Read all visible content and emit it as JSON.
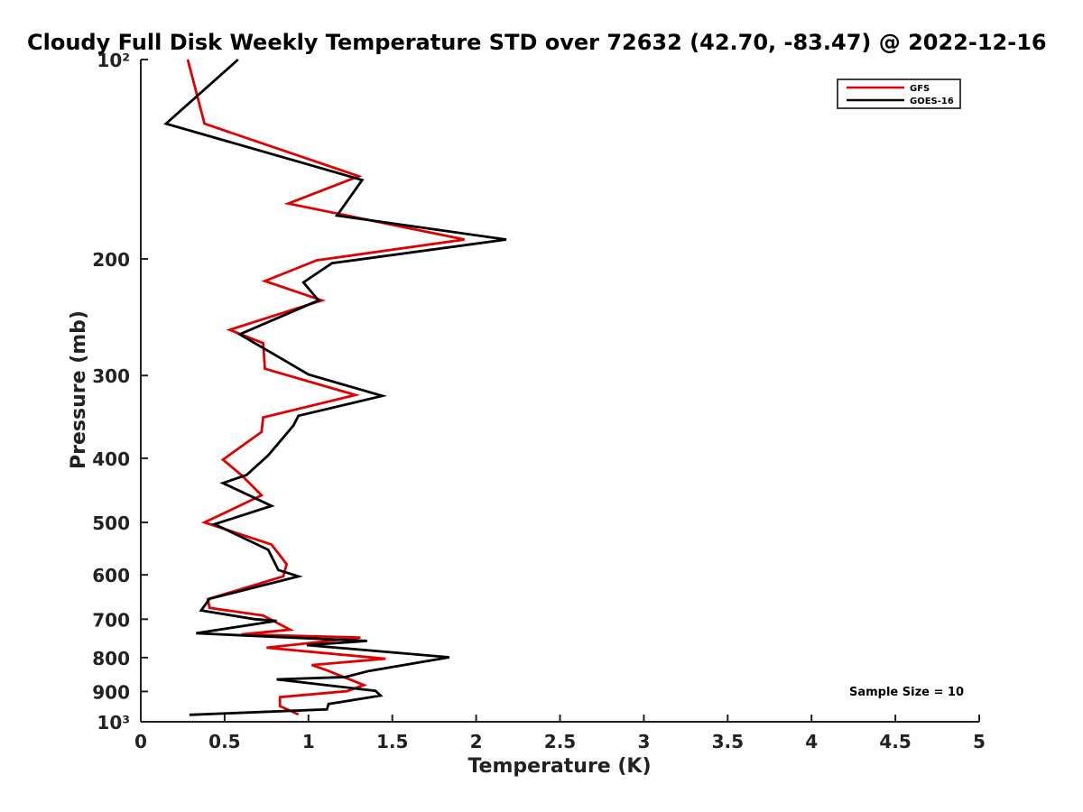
{
  "chart_data": {
    "type": "line",
    "title": "Cloudy Full Disk Weekly Temperature STD over 72632 (42.70, -83.47) @ 2022-12-16",
    "xlabel": "Temperature (K)",
    "ylabel": "Pressure (mb)",
    "xlim": [
      0,
      5
    ],
    "ylim": [
      100,
      1000
    ],
    "y_scale": "log",
    "y_reversed": true,
    "grid": false,
    "legend_position": "top-right",
    "x_ticks": [
      0,
      0.5,
      1,
      1.5,
      2,
      2.5,
      3,
      3.5,
      4,
      4.5,
      5
    ],
    "x_tick_labels": [
      "0",
      "0.5",
      "1",
      "1.5",
      "2",
      "2.5",
      "3",
      "3.5",
      "4",
      "4.5",
      "5"
    ],
    "y_ticks": [
      100,
      200,
      300,
      400,
      500,
      600,
      700,
      800,
      900,
      1000
    ],
    "y_tick_labels": [
      "10²",
      "200",
      "300",
      "400",
      "500",
      "600",
      "700",
      "800",
      "900",
      "10³"
    ],
    "series": [
      {
        "name": "GFS",
        "color": "#e00000",
        "points": [
          [
            0.28,
            100
          ],
          [
            0.38,
            125
          ],
          [
            1.3,
            150
          ],
          [
            0.88,
            165
          ],
          [
            1.93,
            187
          ],
          [
            1.05,
            201
          ],
          [
            0.74,
            216
          ],
          [
            1.08,
            231
          ],
          [
            0.53,
            256
          ],
          [
            0.73,
            268
          ],
          [
            0.74,
            293
          ],
          [
            1.28,
            321
          ],
          [
            0.73,
            347
          ],
          [
            0.72,
            365
          ],
          [
            0.49,
            402
          ],
          [
            0.6,
            424
          ],
          [
            0.72,
            455
          ],
          [
            0.38,
            500
          ],
          [
            0.78,
            540
          ],
          [
            0.87,
            578
          ],
          [
            0.85,
            603
          ],
          [
            0.72,
            617
          ],
          [
            0.4,
            653
          ],
          [
            0.41,
            673
          ],
          [
            0.73,
            691
          ],
          [
            0.89,
            726
          ],
          [
            0.6,
            738
          ],
          [
            1.31,
            746
          ],
          [
            0.75,
            773
          ],
          [
            1.46,
            803
          ],
          [
            1.02,
            821
          ],
          [
            1.11,
            836
          ],
          [
            1.33,
            880
          ],
          [
            1.23,
            899
          ],
          [
            0.83,
            918
          ],
          [
            0.83,
            947
          ],
          [
            0.94,
            975
          ]
        ]
      },
      {
        "name": "GOES-16",
        "color": "#000000",
        "points": [
          [
            0.58,
            100
          ],
          [
            0.15,
            125
          ],
          [
            1.32,
            152
          ],
          [
            1.17,
            172
          ],
          [
            2.18,
            187
          ],
          [
            1.14,
            203
          ],
          [
            0.97,
            217
          ],
          [
            1.06,
            231
          ],
          [
            0.59,
            260
          ],
          [
            0.85,
            284
          ],
          [
            1.0,
            299
          ],
          [
            1.44,
            322
          ],
          [
            0.94,
            345
          ],
          [
            0.91,
            357
          ],
          [
            0.76,
            396
          ],
          [
            0.63,
            424
          ],
          [
            0.49,
            436
          ],
          [
            0.78,
            472
          ],
          [
            0.44,
            503
          ],
          [
            0.76,
            550
          ],
          [
            0.82,
            590
          ],
          [
            0.94,
            603
          ],
          [
            0.41,
            652
          ],
          [
            0.36,
            679
          ],
          [
            0.68,
            700
          ],
          [
            0.81,
            704
          ],
          [
            0.33,
            735
          ],
          [
            1.35,
            755
          ],
          [
            0.99,
            766
          ],
          [
            1.84,
            799
          ],
          [
            1.36,
            838
          ],
          [
            1.22,
            856
          ],
          [
            0.81,
            863
          ],
          [
            1.4,
            898
          ],
          [
            1.43,
            913
          ],
          [
            1.12,
            940
          ],
          [
            1.11,
            958
          ],
          [
            0.29,
            976
          ]
        ]
      }
    ],
    "annotation": "Sample Size = 10"
  }
}
